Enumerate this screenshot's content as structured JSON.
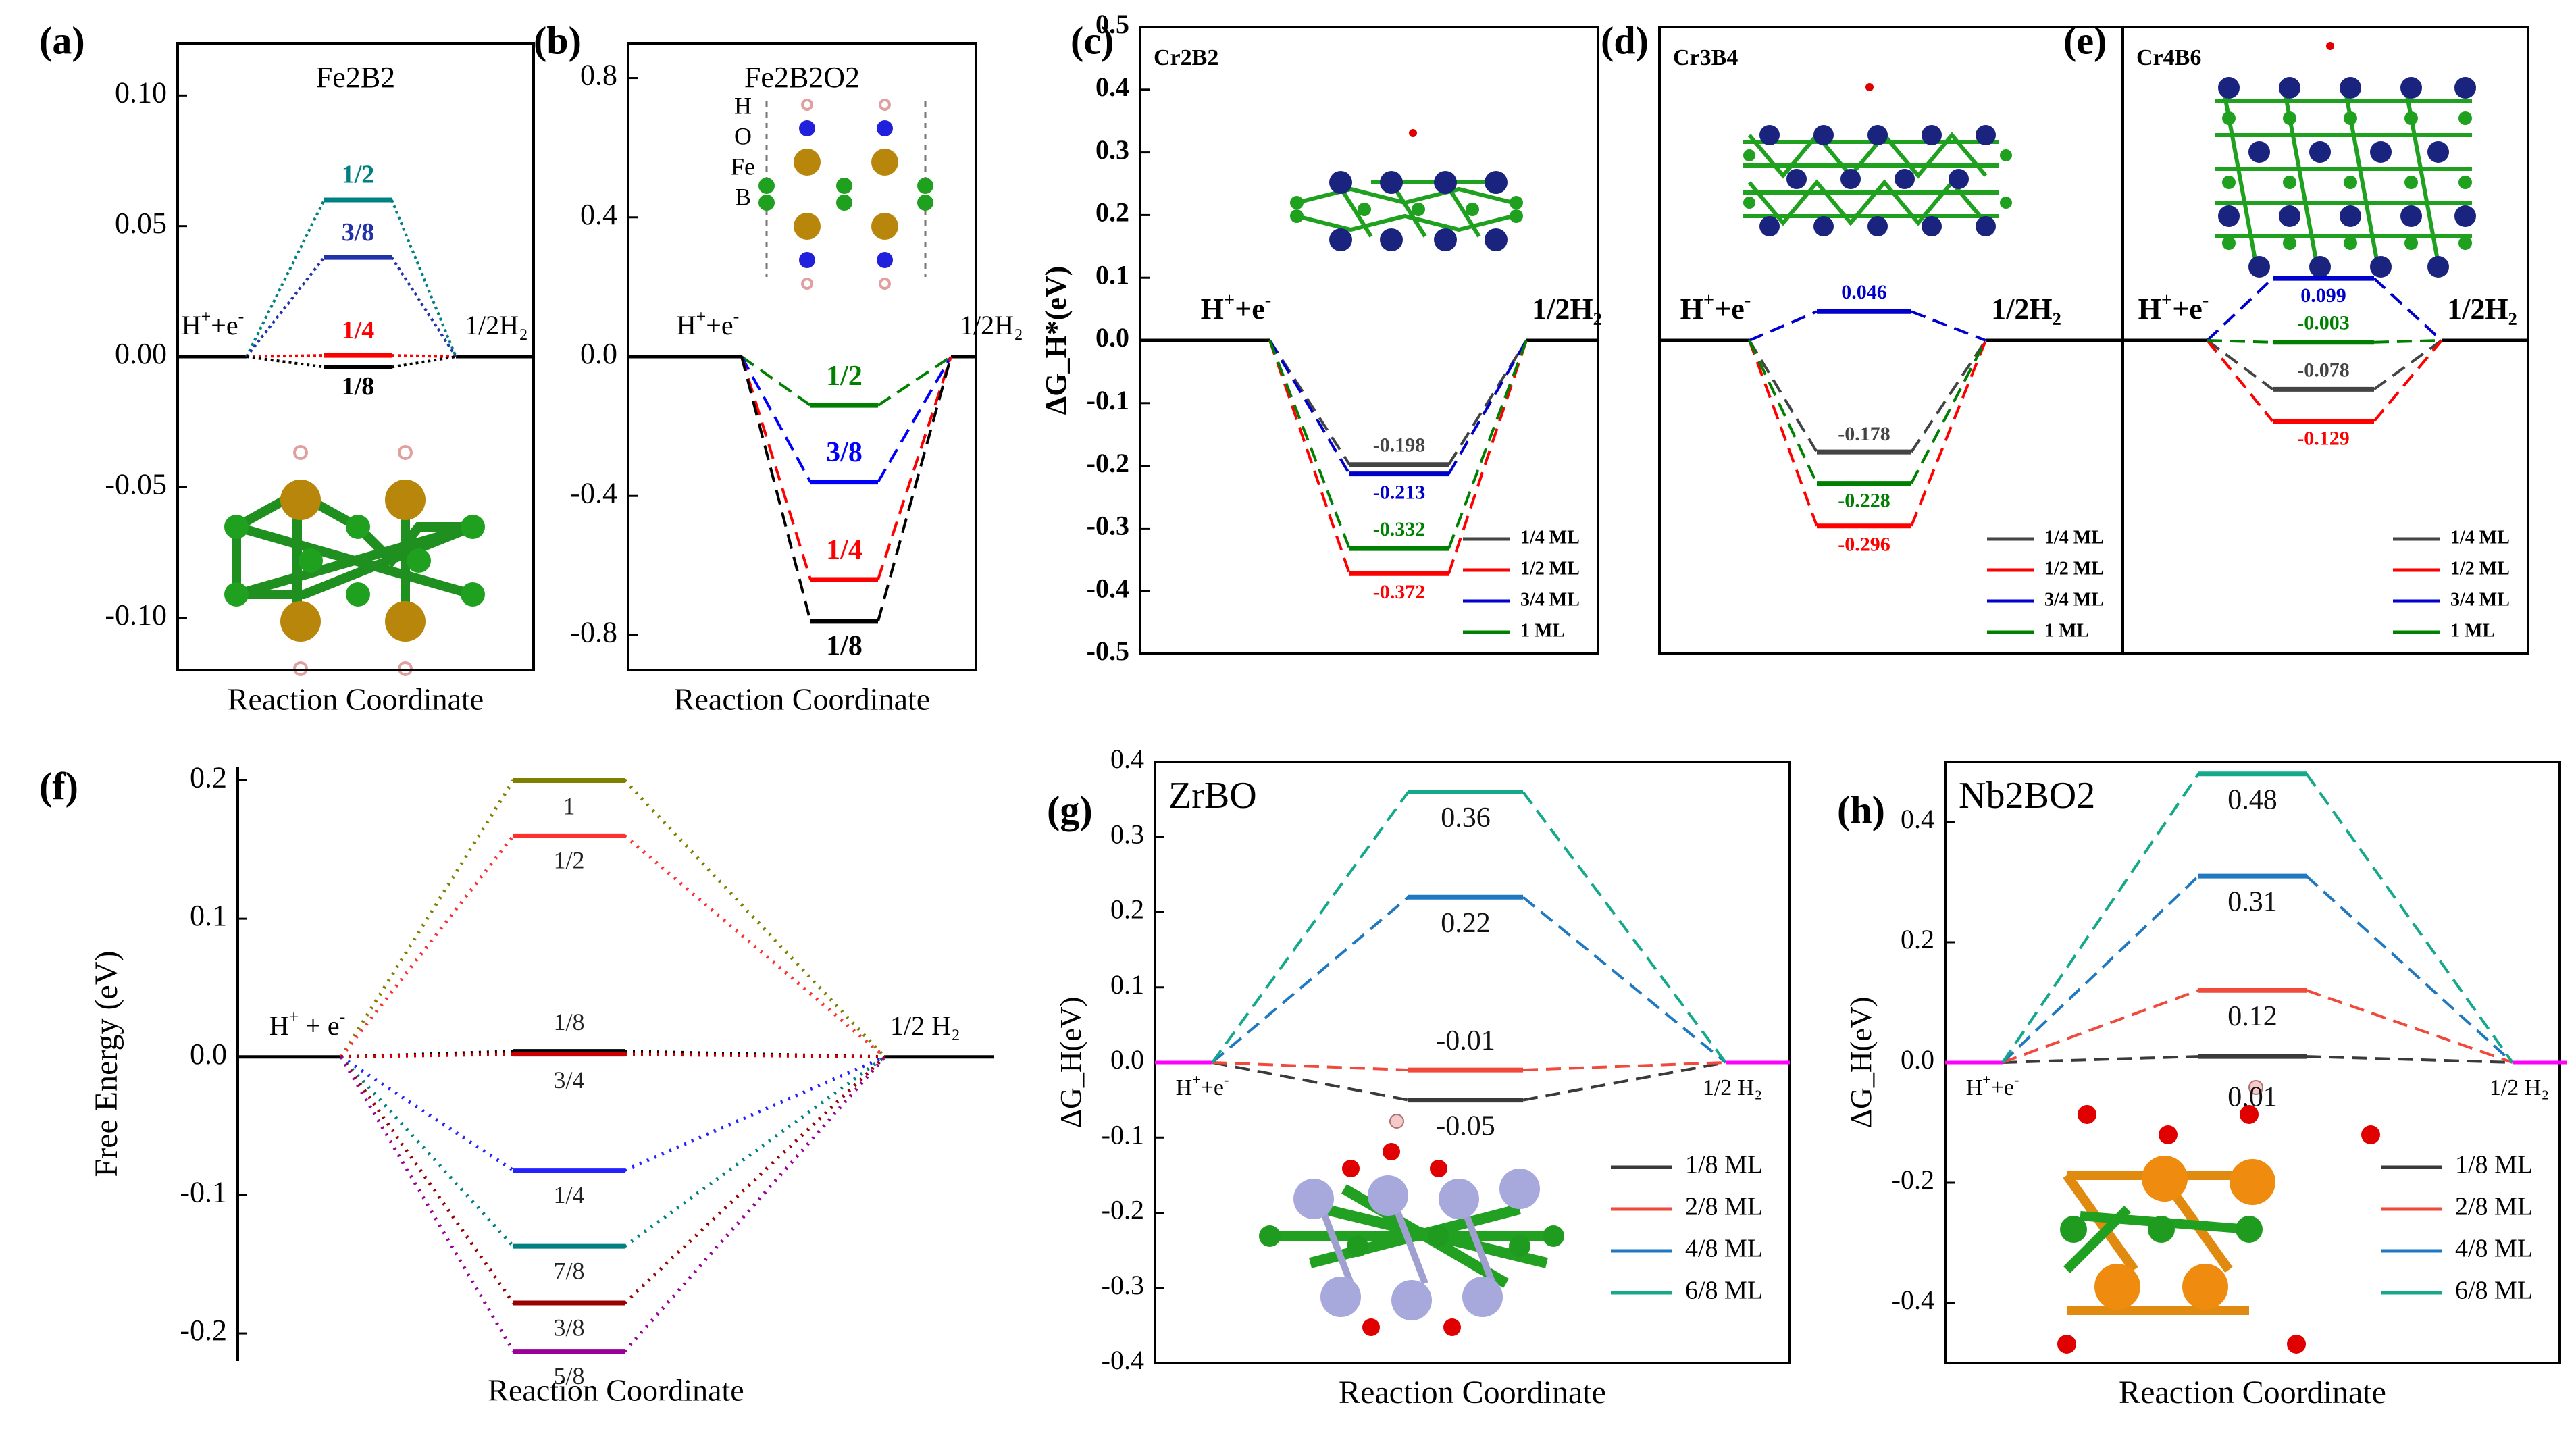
{
  "chart_data": [
    {
      "id": "a",
      "panel_label": "(a)",
      "type": "energy-level-diagram",
      "title": "Fe2B2",
      "xlabel": "Reaction Coordinate",
      "ylabel": "",
      "ylim": [
        -0.12,
        0.12
      ],
      "yticks": [
        -0.1,
        -0.05,
        0.0,
        0.05,
        0.1
      ],
      "ytick_labels": [
        "-0.10",
        "-0.05",
        "0.00",
        "0.05",
        "0.10"
      ],
      "left_label": "H⁺+e⁻",
      "right_label": "1/2H₂",
      "series": [
        {
          "name": "1/2",
          "value": 0.06,
          "label": "1/2",
          "color": "#008080"
        },
        {
          "name": "3/8",
          "value": 0.038,
          "label": "3/8",
          "color": "#2233aa"
        },
        {
          "name": "1/4",
          "value": 0.0005,
          "label": "1/4",
          "color": "#ff0000"
        },
        {
          "name": "1/8",
          "value": -0.004,
          "label": "1/8",
          "color": "#000000"
        }
      ],
      "structure_labels": []
    },
    {
      "id": "b",
      "panel_label": "(b)",
      "type": "energy-level-diagram",
      "title": "Fe2B2O2",
      "xlabel": "Reaction Coordinate",
      "ylabel": "",
      "ylim": [
        -0.9,
        0.9
      ],
      "yticks": [
        -0.8,
        -0.4,
        0.0,
        0.4,
        0.8
      ],
      "ytick_labels": [
        "-0.8",
        "-0.4",
        "0.0",
        "0.4",
        "0.8"
      ],
      "left_label": "H⁺+e⁻",
      "right_label": "1/2H₂",
      "series": [
        {
          "name": "1/2",
          "value": -0.14,
          "label": "1/2",
          "color": "#008000"
        },
        {
          "name": "3/8",
          "value": -0.36,
          "label": "3/8",
          "color": "#0000ff"
        },
        {
          "name": "1/4",
          "value": -0.64,
          "label": "1/4",
          "color": "#ff0000"
        },
        {
          "name": "1/8",
          "value": -0.76,
          "label": "1/8",
          "color": "#000000"
        }
      ],
      "structure_labels": [
        "H",
        "O",
        "Fe",
        "B"
      ]
    },
    {
      "id": "c",
      "panel_label": "(c)",
      "type": "energy-level-diagram",
      "title": "Cr2B2",
      "xlabel": "",
      "ylabel": "ΔG_H*(eV)",
      "ylim": [
        -0.5,
        0.5
      ],
      "yticks": [
        -0.5,
        -0.4,
        -0.3,
        -0.2,
        -0.1,
        0.0,
        0.1,
        0.2,
        0.3,
        0.4,
        0.5
      ],
      "ytick_labels": [
        "-0.5",
        "-0.4",
        "-0.3",
        "-0.2",
        "-0.1",
        "0.0",
        "0.1",
        "0.2",
        "0.3",
        "0.4",
        "0.5"
      ],
      "left_label": "H⁺+e⁻",
      "right_label": "1/2H₂",
      "series": [
        {
          "name": "1/4 ML",
          "value": -0.198,
          "label": "-0.198",
          "color": "#444444"
        },
        {
          "name": "1/2 ML",
          "value": -0.372,
          "label": "-0.372",
          "color": "#ff0000"
        },
        {
          "name": "3/4 ML",
          "value": -0.213,
          "label": "-0.213",
          "color": "#0000cc"
        },
        {
          "name": "1 ML",
          "value": -0.332,
          "label": "-0.332",
          "color": "#008000"
        }
      ],
      "legend": [
        "1/4 ML",
        "1/2 ML",
        "3/4 ML",
        "1 ML"
      ]
    },
    {
      "id": "d",
      "panel_label": "(d)",
      "type": "energy-level-diagram",
      "title": "Cr3B4",
      "xlabel": "",
      "ylabel": "",
      "ylim": [
        -0.5,
        0.5
      ],
      "yticks": [],
      "ytick_labels": [],
      "left_label": "H⁺+e⁻",
      "right_label": "1/2H₂",
      "series": [
        {
          "name": "1/4 ML",
          "value": -0.178,
          "label": "-0.178",
          "color": "#444444"
        },
        {
          "name": "1/2 ML",
          "value": -0.296,
          "label": "-0.296",
          "color": "#ff0000"
        },
        {
          "name": "3/4 ML",
          "value": 0.046,
          "label": "0.046",
          "color": "#0000cc"
        },
        {
          "name": "1 ML",
          "value": -0.228,
          "label": "-0.228",
          "color": "#008000"
        }
      ],
      "legend": [
        "1/4 ML",
        "1/2 ML",
        "3/4 ML",
        "1 ML"
      ]
    },
    {
      "id": "e",
      "panel_label": "(e)",
      "type": "energy-level-diagram",
      "title": "Cr4B6",
      "xlabel": "",
      "ylabel": "",
      "ylim": [
        -0.5,
        0.5
      ],
      "yticks": [],
      "ytick_labels": [],
      "left_label": "H⁺+e⁻",
      "right_label": "1/2H₂",
      "series": [
        {
          "name": "1/4 ML",
          "value": -0.078,
          "label": "-0.078",
          "color": "#444444"
        },
        {
          "name": "1/2 ML",
          "value": -0.129,
          "label": "-0.129",
          "color": "#ff0000"
        },
        {
          "name": "3/4 ML",
          "value": 0.099,
          "label": "0.099",
          "color": "#0000cc"
        },
        {
          "name": "1 ML",
          "value": -0.003,
          "label": "-0.003",
          "color": "#008000"
        }
      ],
      "legend": [
        "1/4 ML",
        "1/2 ML",
        "3/4 ML",
        "1 ML"
      ]
    },
    {
      "id": "f",
      "panel_label": "(f)",
      "type": "energy-level-diagram",
      "title": "",
      "xlabel": "Reaction Coordinate",
      "ylabel": "Free Energy (eV)",
      "ylim": [
        -0.22,
        0.21
      ],
      "yticks": [
        -0.2,
        -0.1,
        0.0,
        0.1,
        0.2
      ],
      "ytick_labels": [
        "-0.2",
        "-0.1",
        "0.0",
        "0.1",
        "0.2"
      ],
      "left_label": "H⁺ + e⁻",
      "right_label": "1/2 H₂",
      "series": [
        {
          "name": "1",
          "value": 0.2,
          "label": "1",
          "color": "#808000"
        },
        {
          "name": "1/2",
          "value": 0.16,
          "label": "1/2",
          "color": "#ff3030"
        },
        {
          "name": "1/8",
          "value": 0.004,
          "label": "1/8",
          "color": "#000000"
        },
        {
          "name": "3/4",
          "value": 0.002,
          "label": "3/4",
          "color": "#cc0000"
        },
        {
          "name": "1/4",
          "value": -0.082,
          "label": "1/4",
          "color": "#2222ff"
        },
        {
          "name": "7/8",
          "value": -0.137,
          "label": "7/8",
          "color": "#008080"
        },
        {
          "name": "3/8",
          "value": -0.178,
          "label": "3/8",
          "color": "#990000"
        },
        {
          "name": "5/8",
          "value": -0.213,
          "label": "5/8",
          "color": "#990099"
        }
      ]
    },
    {
      "id": "g",
      "panel_label": "(g)",
      "type": "energy-level-diagram",
      "title": "ZrBO",
      "xlabel": "Reaction Coordinate",
      "ylabel": "ΔG_H(eV)",
      "ylim": [
        -0.4,
        0.4
      ],
      "yticks": [
        -0.4,
        -0.3,
        -0.2,
        -0.1,
        0.0,
        0.1,
        0.2,
        0.3,
        0.4
      ],
      "ytick_labels": [
        "-0.4",
        "-0.3",
        "-0.2",
        "-0.1",
        "0.0",
        "0.1",
        "0.2",
        "0.3",
        "0.4"
      ],
      "left_label": "H⁺+e⁻",
      "right_label": "1/2 H₂",
      "series": [
        {
          "name": "1/8 ML",
          "value": -0.05,
          "label": "-0.05",
          "color": "#3a3a3a"
        },
        {
          "name": "2/8 ML",
          "value": -0.01,
          "label": "-0.01",
          "color": "#ef4a3c"
        },
        {
          "name": "4/8 ML",
          "value": 0.22,
          "label": "0.22",
          "color": "#1f78c0"
        },
        {
          "name": "6/8 ML",
          "value": 0.36,
          "label": "0.36",
          "color": "#16a88a"
        }
      ],
      "legend": [
        "1/8 ML",
        "2/8 ML",
        "4/8 ML",
        "6/8 ML"
      ]
    },
    {
      "id": "h",
      "panel_label": "(h)",
      "type": "energy-level-diagram",
      "title": "Nb2BO2",
      "xlabel": "Reaction Coordinate",
      "ylabel": "ΔG_H(eV)",
      "ylim": [
        -0.5,
        0.5
      ],
      "yticks": [
        -0.4,
        -0.2,
        0.0,
        0.2,
        0.4
      ],
      "ytick_labels": [
        "-0.4",
        "-0.2",
        "0.0",
        "0.2",
        "0.4"
      ],
      "left_label": "H⁺+e⁻",
      "right_label": "1/2 H₂",
      "series": [
        {
          "name": "1/8 ML",
          "value": 0.01,
          "label": "0.01",
          "color": "#3a3a3a"
        },
        {
          "name": "2/8 ML",
          "value": 0.12,
          "label": "0.12",
          "color": "#ef4a3c"
        },
        {
          "name": "4/8 ML",
          "value": 0.31,
          "label": "0.31",
          "color": "#1f78c0"
        },
        {
          "name": "6/8 ML",
          "value": 0.48,
          "label": "0.48",
          "color": "#16a88a"
        }
      ],
      "legend": [
        "1/8 ML",
        "2/8 ML",
        "4/8 ML",
        "6/8 ML"
      ]
    }
  ],
  "colors": {
    "axis": "#000000",
    "baseline_pink": "#ff00ff",
    "fe_atom": "#b8860b",
    "b_atom": "#22aa22",
    "cr_atom": "#1a237e",
    "zr_atom": "#a0a0d8",
    "o_atom": "#e00000",
    "nb_atom": "#e88a10",
    "h_atom": "#f2caca"
  }
}
